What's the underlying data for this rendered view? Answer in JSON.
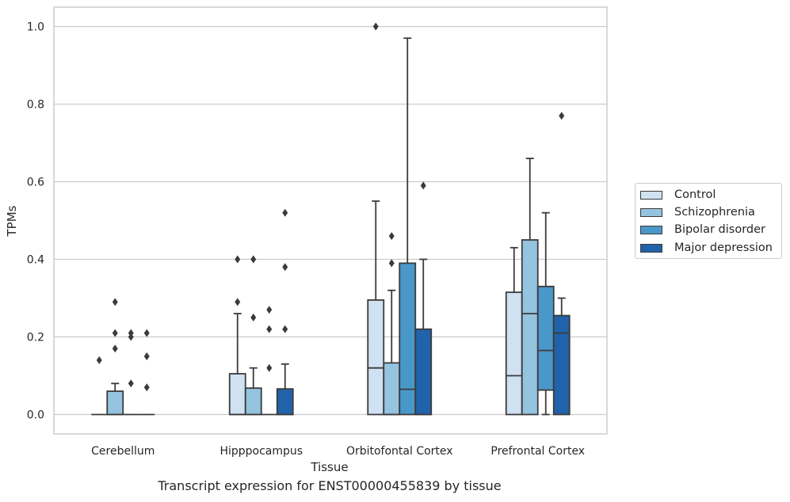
{
  "caption": "Transcript expression for ENST00000455839 by tissue",
  "chart_data": {
    "type": "box",
    "title": "",
    "xlabel": "Tissue",
    "ylabel": "TPMs",
    "ylim": [
      -0.05,
      1.05
    ],
    "yticks": [
      0.0,
      0.2,
      0.4,
      0.6,
      0.8,
      1.0
    ],
    "ytick_labels": [
      "0.0",
      "0.2",
      "0.4",
      "0.6",
      "0.8",
      "1.0"
    ],
    "grid": "horizontal",
    "legend_position": "right",
    "categories": [
      "Cerebellum",
      "Hipppocampus",
      "Orbitofontal Cortex",
      "Prefrontal Cortex"
    ],
    "series": [
      {
        "name": "Control",
        "color": "#d0e1f2",
        "boxes": [
          {
            "q1": 0,
            "median": 0,
            "q3": 0,
            "whisker_low": 0,
            "whisker_high": 0,
            "outliers": [
              0.14
            ]
          },
          {
            "q1": 0,
            "median": 0,
            "q3": 0.105,
            "whisker_low": 0,
            "whisker_high": 0.26,
            "outliers": [
              0.29,
              0.4
            ]
          },
          {
            "q1": 0,
            "median": 0.12,
            "q3": 0.295,
            "whisker_low": 0,
            "whisker_high": 0.55,
            "outliers": [
              1.0
            ]
          },
          {
            "q1": 0,
            "median": 0.1,
            "q3": 0.315,
            "whisker_low": 0,
            "whisker_high": 0.43,
            "outliers": []
          }
        ]
      },
      {
        "name": "Schizophrenia",
        "color": "#94c4df",
        "boxes": [
          {
            "q1": 0,
            "median": 0,
            "q3": 0.06,
            "whisker_low": 0,
            "whisker_high": 0.08,
            "outliers": [
              0.17,
              0.21,
              0.29
            ]
          },
          {
            "q1": 0,
            "median": 0,
            "q3": 0.068,
            "whisker_low": 0,
            "whisker_high": 0.12,
            "outliers": [
              0.25,
              0.4
            ]
          },
          {
            "q1": 0,
            "median": 0,
            "q3": 0.133,
            "whisker_low": 0,
            "whisker_high": 0.32,
            "outliers": [
              0.39,
              0.46
            ]
          },
          {
            "q1": 0,
            "median": 0.26,
            "q3": 0.45,
            "whisker_low": 0,
            "whisker_high": 0.66,
            "outliers": []
          }
        ]
      },
      {
        "name": "Bipolar disorder",
        "color": "#4a98c9",
        "boxes": [
          {
            "q1": 0,
            "median": 0,
            "q3": 0,
            "whisker_low": 0,
            "whisker_high": 0,
            "outliers": [
              0.08,
              0.2,
              0.21
            ]
          },
          {
            "q1": 0,
            "median": 0,
            "q3": 0,
            "whisker_low": 0,
            "whisker_high": 0,
            "outliers": [
              0.12,
              0.22,
              0.27
            ]
          },
          {
            "q1": 0,
            "median": 0.065,
            "q3": 0.39,
            "whisker_low": 0,
            "whisker_high": 0.97,
            "outliers": []
          },
          {
            "q1": 0.063,
            "median": 0.165,
            "q3": 0.33,
            "whisker_low": 0,
            "whisker_high": 0.52,
            "outliers": []
          }
        ]
      },
      {
        "name": "Major depression",
        "color": "#2163aa",
        "boxes": [
          {
            "q1": 0,
            "median": 0,
            "q3": 0,
            "whisker_low": 0,
            "whisker_high": 0,
            "outliers": [
              0.07,
              0.15,
              0.21
            ]
          },
          {
            "q1": 0,
            "median": 0,
            "q3": 0.066,
            "whisker_low": 0,
            "whisker_high": 0.13,
            "outliers": [
              0.22,
              0.38,
              0.52
            ]
          },
          {
            "q1": 0,
            "median": 0,
            "q3": 0.22,
            "whisker_low": 0,
            "whisker_high": 0.4,
            "outliers": [
              0.59
            ]
          },
          {
            "q1": 0,
            "median": 0.21,
            "q3": 0.255,
            "whisker_low": 0,
            "whisker_high": 0.3,
            "outliers": [
              0.77
            ]
          }
        ]
      }
    ]
  }
}
